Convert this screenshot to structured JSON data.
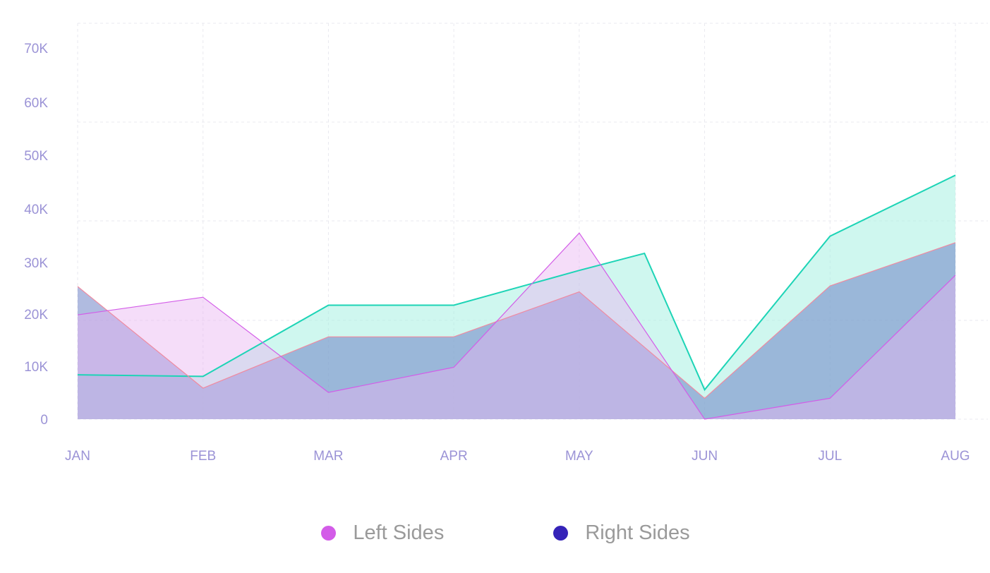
{
  "chart_data": {
    "type": "area",
    "categories": [
      "JAN",
      "FEB",
      "MAR",
      "APR",
      "MAY",
      "JUN",
      "JUL",
      "AUG"
    ],
    "y_ticks": [
      "0",
      "10K",
      "20K",
      "30K",
      "40K",
      "50K",
      "60K",
      "70K"
    ],
    "ylim": [
      0,
      70000
    ],
    "grid": true,
    "legend_position": "bottom-center",
    "series": [
      {
        "name": "Left Sides",
        "color": "#d35ce8",
        "fill": "#e9b3f2",
        "x": [
          0,
          1,
          2,
          3,
          4,
          5,
          6,
          7
        ],
        "values": [
          19500,
          22800,
          5000,
          9700,
          34800,
          0,
          3900,
          26900
        ]
      },
      {
        "name": "Right Sides",
        "color": "#f08aa0",
        "fill": "#6f84c6",
        "x": [
          0,
          1,
          2,
          3,
          4,
          5,
          6,
          7
        ],
        "values": [
          24800,
          5800,
          15400,
          15400,
          23800,
          3900,
          24900,
          33000
        ]
      },
      {
        "color": "#1dd4b6",
        "fill": "#9ff0e0",
        "x": [
          0,
          1,
          2,
          3,
          4,
          4.52,
          5,
          6,
          7
        ],
        "values": [
          8300,
          8000,
          21300,
          21300,
          27800,
          31000,
          5500,
          34200,
          45600
        ]
      }
    ],
    "legend": [
      {
        "label": "Left Sides",
        "color": "#d35ce8"
      },
      {
        "label": "Right Sides",
        "color": "#3523b8"
      }
    ]
  }
}
